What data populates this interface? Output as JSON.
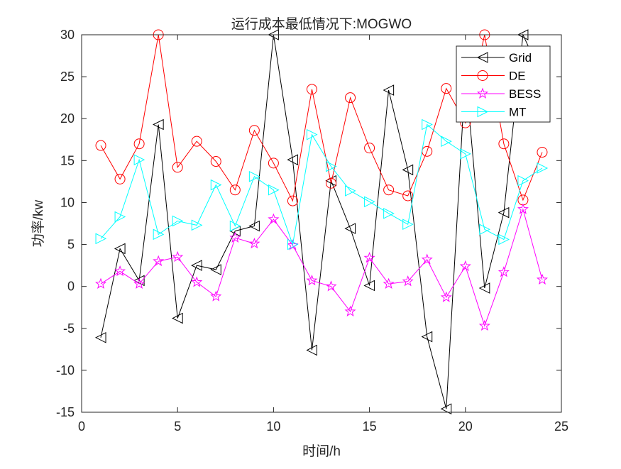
{
  "chart_data": {
    "type": "line",
    "title": "运行成本最低情况下:MOGWO",
    "xlabel": "时间/h",
    "ylabel": "功率/kw",
    "xlim": [
      0,
      25
    ],
    "ylim": [
      -15,
      30
    ],
    "xticks": [
      0,
      5,
      10,
      15,
      20,
      25
    ],
    "yticks": [
      -15,
      -10,
      -5,
      0,
      5,
      10,
      15,
      20,
      25,
      30
    ],
    "grid": false,
    "legend_position": "top-right",
    "x": [
      1,
      2,
      3,
      4,
      5,
      6,
      7,
      8,
      9,
      10,
      11,
      12,
      13,
      14,
      15,
      16,
      17,
      18,
      19,
      20,
      21,
      22,
      23,
      24
    ],
    "series": [
      {
        "name": "Grid",
        "color": "#000000",
        "marker": "triangle-left",
        "values": [
          -6.1,
          4.5,
          0.7,
          19.3,
          -3.8,
          2.5,
          2.0,
          6.6,
          7.2,
          30.0,
          15.1,
          -7.6,
          12.6,
          6.9,
          0.1,
          23.4,
          13.9,
          -6.0,
          -14.6,
          25.5,
          -0.2,
          8.8,
          30.0,
          25.0
        ]
      },
      {
        "name": "DE",
        "color": "#ff0000",
        "marker": "circle",
        "values": [
          16.8,
          12.8,
          17.0,
          30.0,
          14.2,
          17.3,
          14.9,
          11.5,
          18.6,
          14.7,
          10.2,
          23.5,
          12.3,
          22.5,
          16.5,
          11.5,
          10.8,
          16.1,
          23.6,
          19.5,
          30.0,
          17.0,
          10.3,
          16.0
        ]
      },
      {
        "name": "BESS",
        "color": "#ff00ff",
        "marker": "pentagram",
        "values": [
          0.3,
          1.8,
          0.3,
          3.0,
          3.5,
          0.5,
          -1.2,
          5.8,
          5.1,
          8.0,
          4.9,
          0.7,
          0.0,
          -3.0,
          3.4,
          0.3,
          0.6,
          3.2,
          -1.3,
          2.4,
          -4.7,
          1.7,
          9.2,
          0.8
        ]
      },
      {
        "name": "MT",
        "color": "#00ffff",
        "marker": "triangle-right",
        "values": [
          5.7,
          8.3,
          15.1,
          6.2,
          7.8,
          7.3,
          12.1,
          7.2,
          13.1,
          11.5,
          5.0,
          18.1,
          14.3,
          11.4,
          10.1,
          8.7,
          7.4,
          19.3,
          17.3,
          15.8,
          6.8,
          5.6,
          12.6,
          14.1
        ]
      }
    ]
  }
}
